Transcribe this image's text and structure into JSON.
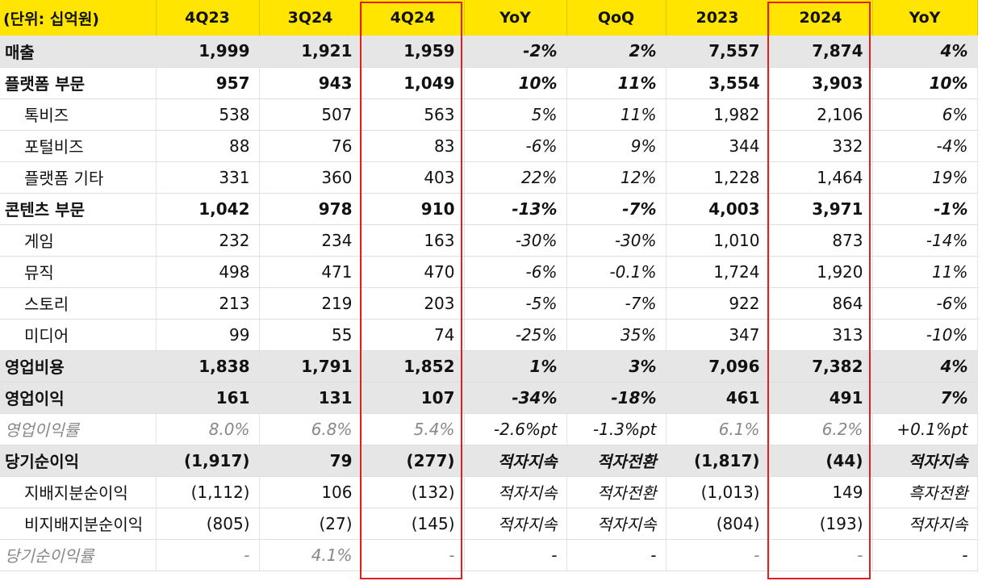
{
  "headers": [
    "(단위: 십억원)",
    "4Q23",
    "3Q24",
    "4Q24",
    "YoY",
    "QoQ",
    "2023",
    "2024",
    "YoY"
  ],
  "rows": [
    {
      "label": "매출",
      "values": [
        "1,999",
        "1,921",
        "1,959",
        "-2%",
        "2%",
        "7,557",
        "7,874",
        "4%"
      ]
    },
    {
      "label": "플랫폼 부문",
      "values": [
        "957",
        "943",
        "1,049",
        "10%",
        "11%",
        "3,554",
        "3,903",
        "10%"
      ]
    },
    {
      "label": "톡비즈",
      "values": [
        "538",
        "507",
        "563",
        "5%",
        "11%",
        "1,982",
        "2,106",
        "6%"
      ]
    },
    {
      "label": "포털비즈",
      "values": [
        "88",
        "76",
        "83",
        "-6%",
        "9%",
        "344",
        "332",
        "-4%"
      ]
    },
    {
      "label": "플랫폼 기타",
      "values": [
        "331",
        "360",
        "403",
        "22%",
        "12%",
        "1,228",
        "1,464",
        "19%"
      ]
    },
    {
      "label": "콘텐츠 부문",
      "values": [
        "1,042",
        "978",
        "910",
        "-13%",
        "-7%",
        "4,003",
        "3,971",
        "-1%"
      ]
    },
    {
      "label": "게임",
      "values": [
        "232",
        "234",
        "163",
        "-30%",
        "-30%",
        "1,010",
        "873",
        "-14%"
      ]
    },
    {
      "label": "뮤직",
      "values": [
        "498",
        "471",
        "470",
        "-6%",
        "-0.1%",
        "1,724",
        "1,920",
        "11%"
      ]
    },
    {
      "label": "스토리",
      "values": [
        "213",
        "219",
        "203",
        "-5%",
        "-7%",
        "922",
        "864",
        "-6%"
      ]
    },
    {
      "label": "미디어",
      "values": [
        "99",
        "55",
        "74",
        "-25%",
        "35%",
        "347",
        "313",
        "-10%"
      ]
    },
    {
      "label": "영업비용",
      "values": [
        "1,838",
        "1,791",
        "1,852",
        "1%",
        "3%",
        "7,096",
        "7,382",
        "4%"
      ]
    },
    {
      "label": "영업이익",
      "values": [
        "161",
        "131",
        "107",
        "-34%",
        "-18%",
        "461",
        "491",
        "7%"
      ]
    },
    {
      "label": "영업이익률",
      "values": [
        "8.0%",
        "6.8%",
        "5.4%",
        "-2.6%pt",
        "-1.3%pt",
        "6.1%",
        "6.2%",
        "+0.1%pt"
      ]
    },
    {
      "label": "당기순이익",
      "values": [
        "(1,917)",
        "79",
        "(277)",
        "적자지속",
        "적자전환",
        "(1,817)",
        "(44)",
        "적자지속"
      ]
    },
    {
      "label": "지배지분순이익",
      "values": [
        "(1,112)",
        "106",
        "(132)",
        "적자지속",
        "적자전환",
        "(1,013)",
        "149",
        "흑자전환"
      ]
    },
    {
      "label": "비지배지분순이익",
      "values": [
        "(805)",
        "(27)",
        "(145)",
        "적자지속",
        "적자지속",
        "(804)",
        "(193)",
        "적자지속"
      ]
    },
    {
      "label": "당기순이익률",
      "values": [
        "-",
        "4.1%",
        "-",
        "-",
        "-",
        "-",
        "-",
        "-"
      ]
    }
  ],
  "colors": {
    "header_bg": "#ffe500",
    "highlight_border": "#e02020",
    "shade_bg": "#e6e6e6"
  }
}
